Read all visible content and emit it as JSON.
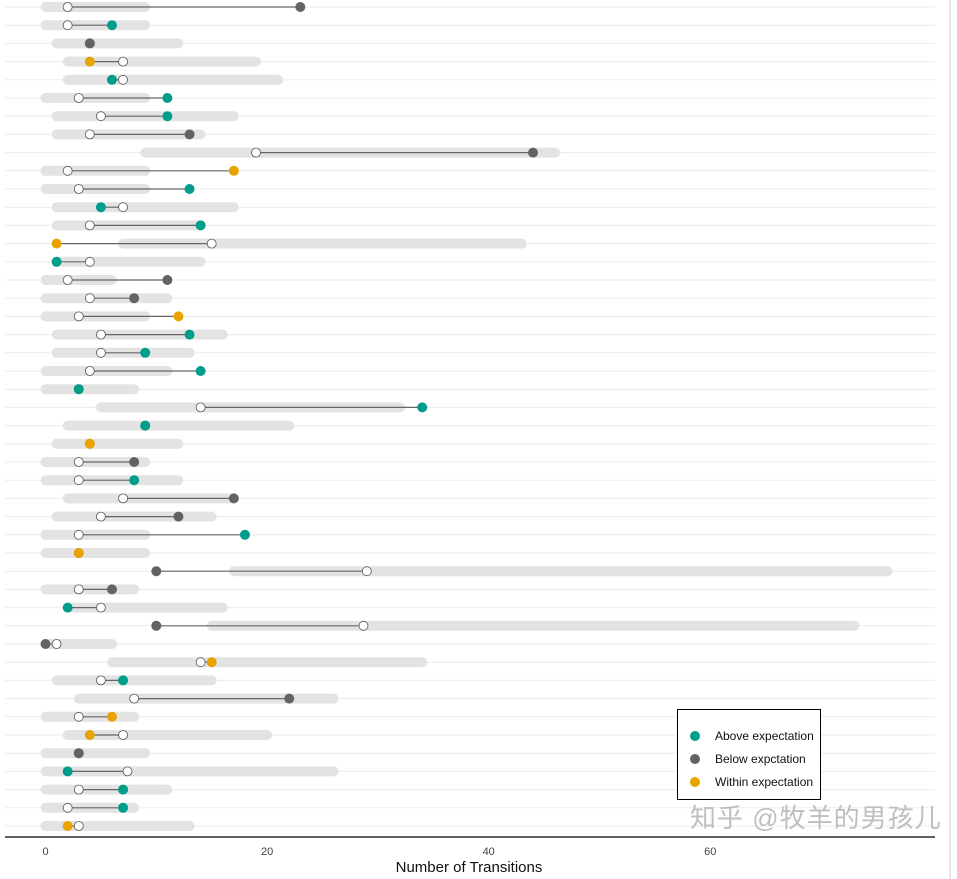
{
  "chart_data": {
    "type": "dumbbell",
    "title": "",
    "xlabel": "Number of Transitions",
    "ylabel": "",
    "xlim": [
      -4,
      80
    ],
    "xticks": [
      0,
      20,
      40,
      60
    ],
    "grid": "horizontal",
    "legend_position": "bottom-right",
    "legend": [
      {
        "label": "Above expectation",
        "color": "#009E8A"
      },
      {
        "label": "Below expctation",
        "color": "#636363"
      },
      {
        "label": "Within expectation",
        "color": "#E9A300"
      }
    ],
    "series_fields": [
      "range_min",
      "range_max",
      "expected",
      "observed",
      "status"
    ],
    "rows": [
      [
        0,
        9,
        2,
        23,
        "below"
      ],
      [
        0,
        9,
        2,
        6,
        "above"
      ],
      [
        1,
        12,
        4,
        4,
        "below"
      ],
      [
        2,
        19,
        7,
        4,
        "within"
      ],
      [
        2,
        21,
        7,
        6,
        "above"
      ],
      [
        0,
        9,
        3,
        11,
        "above"
      ],
      [
        1,
        17,
        5,
        11,
        "above"
      ],
      [
        1,
        14,
        4,
        13,
        "below"
      ],
      [
        9,
        46,
        19,
        44,
        "below"
      ],
      [
        0,
        9,
        2,
        17,
        "within"
      ],
      [
        0,
        9,
        3,
        13,
        "above"
      ],
      [
        1,
        17,
        7,
        5,
        "above"
      ],
      [
        1,
        14,
        4,
        14,
        "above"
      ],
      [
        7,
        43,
        15,
        1,
        "within"
      ],
      [
        1,
        14,
        4,
        1,
        "above"
      ],
      [
        0,
        6,
        2,
        11,
        "below"
      ],
      [
        0,
        11,
        4,
        8,
        "below"
      ],
      [
        0,
        9,
        3,
        12,
        "within"
      ],
      [
        1,
        16,
        5,
        13,
        "above"
      ],
      [
        1,
        13,
        5,
        9,
        "above"
      ],
      [
        0,
        11,
        4,
        14,
        "above"
      ],
      [
        0,
        8,
        3,
        3,
        "above"
      ],
      [
        5,
        32,
        14,
        34,
        "above"
      ],
      [
        2,
        22,
        9,
        9,
        "above"
      ],
      [
        1,
        12,
        4,
        4,
        "within"
      ],
      [
        0,
        9,
        3,
        8,
        "below"
      ],
      [
        0,
        12,
        3,
        8,
        "above"
      ],
      [
        2,
        17,
        7,
        17,
        "below"
      ],
      [
        1,
        15,
        5,
        12,
        "below"
      ],
      [
        0,
        9,
        3,
        18,
        "above"
      ],
      [
        0,
        9,
        3,
        3,
        "within"
      ],
      [
        17,
        76,
        29,
        10,
        "below"
      ],
      [
        0,
        8,
        3,
        6,
        "below"
      ],
      [
        2,
        16,
        5,
        2,
        "above"
      ],
      [
        15,
        73,
        28.7,
        10,
        "below"
      ],
      [
        0,
        6,
        1,
        0,
        "below"
      ],
      [
        6,
        34,
        14,
        15,
        "within"
      ],
      [
        1,
        15,
        5,
        7,
        "above"
      ],
      [
        3,
        26,
        8,
        22,
        "below"
      ],
      [
        0,
        8,
        3,
        6,
        "within"
      ],
      [
        2,
        20,
        7,
        4,
        "within"
      ],
      [
        0,
        9,
        3,
        3,
        "below"
      ],
      [
        0,
        26,
        7.4,
        2,
        "above"
      ],
      [
        0,
        11,
        3,
        7,
        "above"
      ],
      [
        0,
        8,
        2,
        7,
        "above"
      ],
      [
        0,
        13,
        3,
        2,
        "within"
      ]
    ]
  },
  "watermark": "知乎 @牧羊的男孩儿"
}
